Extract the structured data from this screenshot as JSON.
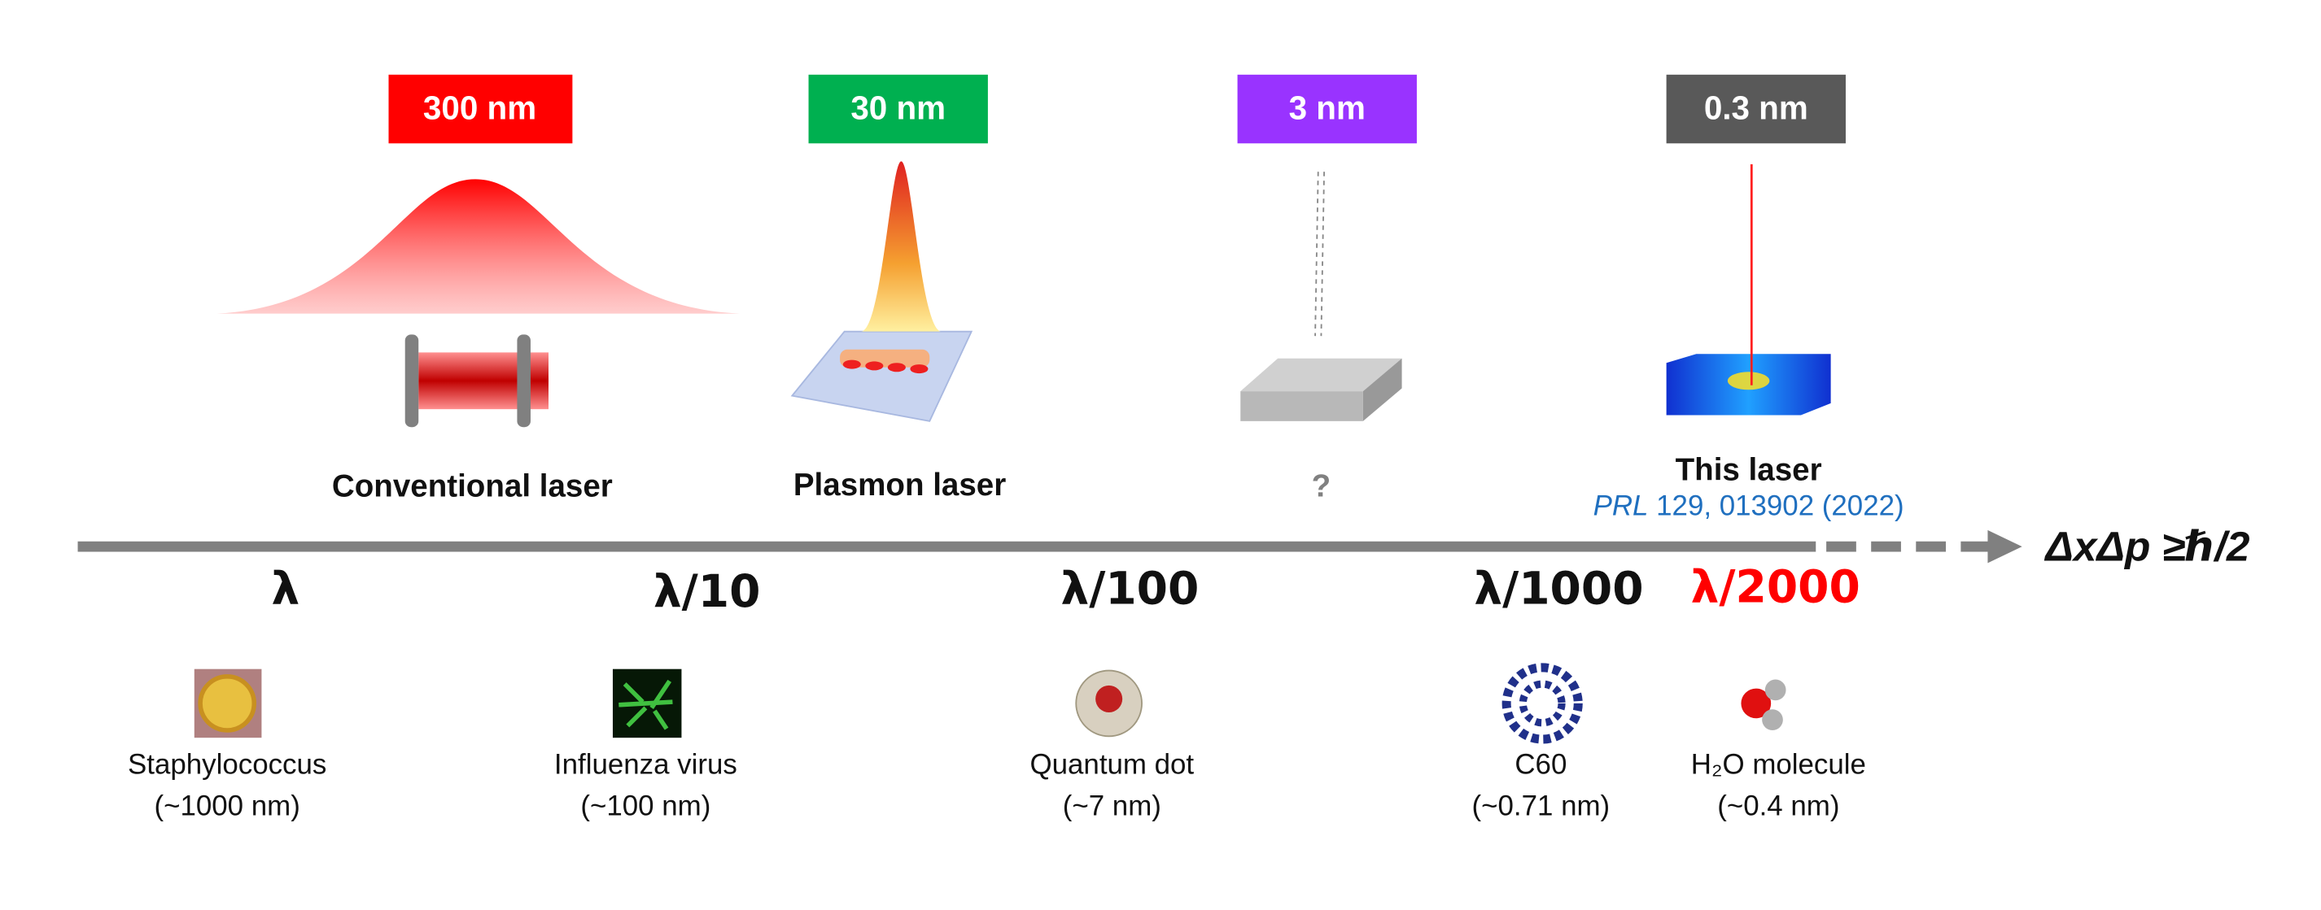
{
  "stages": [
    {
      "size_label": "300 nm",
      "name": "Conventional laser"
    },
    {
      "size_label": "30 nm",
      "name": "Plasmon laser"
    },
    {
      "size_label": "3 nm",
      "name": "?"
    },
    {
      "size_label": "0.3 nm",
      "name": "This laser",
      "citation": {
        "journal": "PRL",
        "reference": "129, 013902 (2022)"
      }
    }
  ],
  "axis": {
    "formula": "ΔxΔp ≥ℏ/2",
    "scales": [
      "λ",
      "λ/10",
      "λ/100",
      "λ/1000",
      "λ/2000"
    ]
  },
  "objects": [
    {
      "name": "Staphylococcus",
      "size": "(~1000 nm)"
    },
    {
      "name": "Influenza virus",
      "size": "(~100 nm)"
    },
    {
      "name": "Quantum dot",
      "size": "(~7 nm)"
    },
    {
      "name": "C60",
      "size": "(~0.71 nm)"
    },
    {
      "name": "H₂O molecule",
      "size": "(~0.4 nm)"
    }
  ]
}
